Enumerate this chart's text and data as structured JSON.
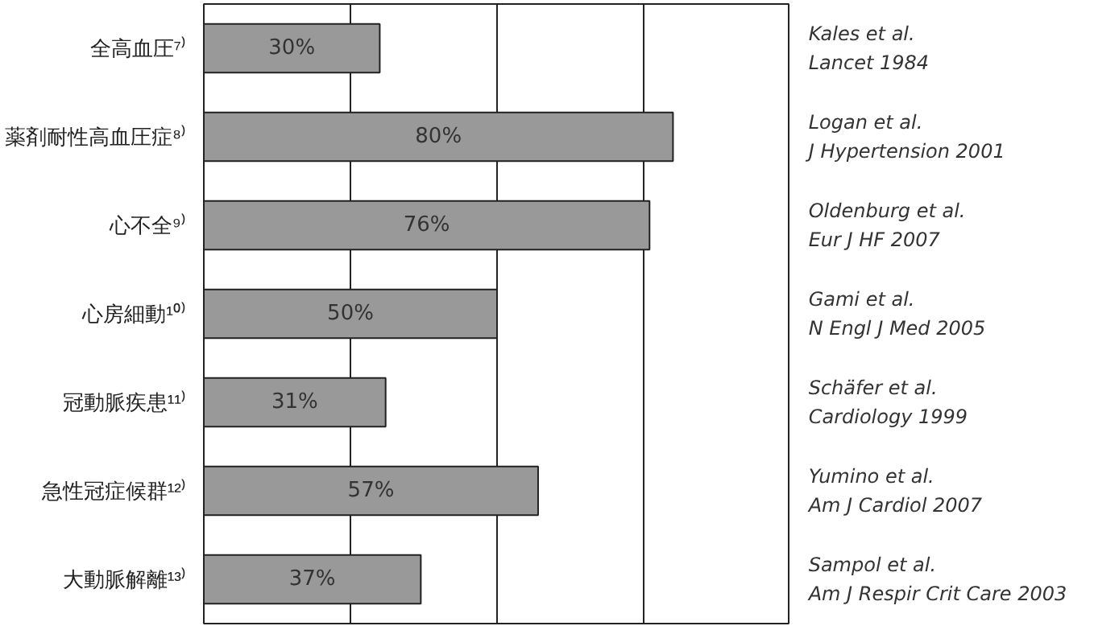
{
  "chart_data": {
    "type": "bar",
    "orientation": "horizontal",
    "categories": [
      "全高血圧⁷⁾",
      "薬剤耐性高血圧症⁸⁾",
      "心不全⁹⁾",
      "心房細動¹⁰⁾",
      "冠動脈疾患¹¹⁾",
      "急性冠症候群¹²⁾",
      "大動脈解離¹³⁾"
    ],
    "values": [
      30,
      80,
      76,
      50,
      31,
      57,
      37
    ],
    "value_labels": [
      "30%",
      "80%",
      "76%",
      "50%",
      "31%",
      "57%",
      "37%"
    ],
    "color": "#999999",
    "xlim": [
      0,
      100
    ],
    "xticks": [
      {
        "value": 0,
        "label": null
      },
      {
        "value": 25,
        "label": null
      },
      {
        "value": 50,
        "label": null
      },
      {
        "value": 75,
        "label": null
      },
      {
        "value": 100,
        "label": null
      }
    ],
    "grid": "x",
    "tick_labels": "y",
    "annotations": [
      "Kales et al.\nLancet 1984",
      "Logan et al.\nJ Hypertension 2001",
      "Oldenburg et al.\nEur J HF 2007",
      "Gami et al.\nN Engl J Med 2005",
      "Schäfer et al.\nCardiology 1999",
      "Yumino et al.\nAm J Cardiol 2007",
      "Sampol et al.\nAm J Respir Crit Care 2003"
    ]
  }
}
